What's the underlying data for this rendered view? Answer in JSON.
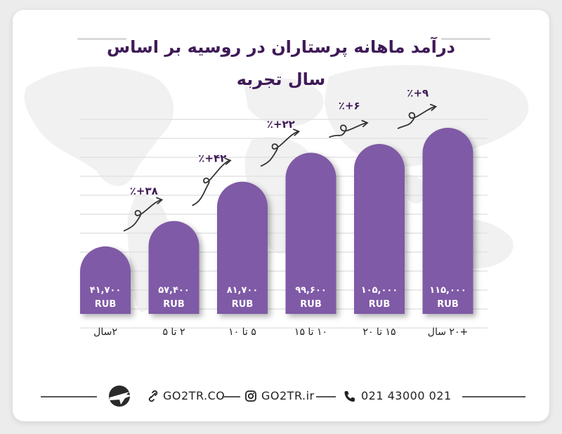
{
  "title": "درآمد ماهانه پرستاران در روسیه بر اساس سال تجربه",
  "chart_data": {
    "type": "bar",
    "title": "درآمد ماهانه پرستاران در روسیه بر اساس سال تجربه",
    "xlabel": "",
    "ylabel": "",
    "unit": "RUB",
    "ylim": [
      0,
      115000
    ],
    "grid": true,
    "categories": [
      "۲سال",
      "۲ تا ۵",
      "۵ تا ۱۰",
      "۱۰ تا ۱۵",
      "۱۵ تا ۲۰",
      "+۲۰ سال"
    ],
    "values": [
      41700,
      57400,
      81700,
      99600,
      105000,
      115000
    ],
    "value_labels": [
      "۴۱,۷۰۰",
      "۵۷,۴۰۰",
      "۸۱,۷۰۰",
      "۹۹,۶۰۰",
      "۱۰۵,۰۰۰",
      "۱۱۵,۰۰۰"
    ],
    "growth_labels": [
      "٪+۳۸",
      "٪+۴۲",
      "٪+۲۲",
      "٪+۶",
      "٪+۹"
    ],
    "bar_color": "#7f5aa6",
    "text_color": "#3f1a58"
  },
  "footer": {
    "website": "GO2TR.CO",
    "instagram": "GO2TR.ir",
    "phone": "021 43000 021",
    "icons": [
      "logo-plane-icon",
      "link-icon",
      "instagram-icon",
      "phone-icon"
    ]
  }
}
